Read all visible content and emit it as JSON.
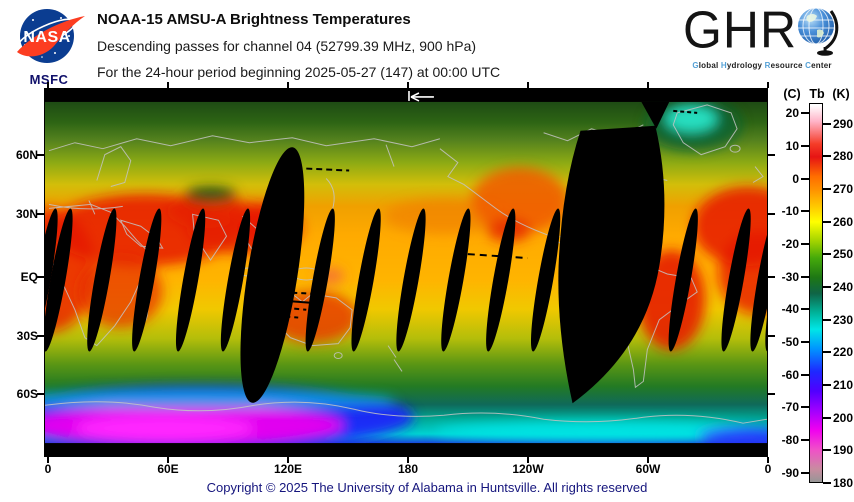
{
  "header": {
    "line1": "NOAA-15 AMSU-A Brightness Temperatures",
    "line2": "Descending passes for channel 04 (52799.39 MHz, 900 hPa)",
    "line3": "For the 24-hour period beginning 2025-05-27 (147) at 00:00 UTC"
  },
  "nasa": {
    "wordmark": "NASA",
    "center_label": "MSFC"
  },
  "ghrc": {
    "letters": "GHR",
    "tagline_words": [
      "Global",
      "Hydrology",
      "Resource",
      "Center"
    ],
    "accent_color": "#55a1d6"
  },
  "map": {
    "lat_labels": [
      "60N",
      "30N",
      "EQ",
      "30S",
      "60S"
    ],
    "lon_labels": [
      "0",
      "60E",
      "120E",
      "180",
      "120W",
      "60W",
      "0"
    ]
  },
  "colorbar": {
    "left_unit": "(C)",
    "title": "Tb",
    "right_unit": "(K)"
  },
  "footer": {
    "copyright": "Copyright © 2025 The University of Alabama in Huntsville.  All rights reserved"
  },
  "chart_data": {
    "type": "heatmap",
    "title": "NOAA-15 AMSU-A Brightness Temperatures",
    "subtitle": "Descending passes for channel 04 (52799.39 MHz, 900 hPa)",
    "period": "24-hour period beginning 2025-05-27 (147) at 00:00 UTC",
    "projection": "global equirectangular, longitude 0 to 360E left-to-right",
    "x_tick_labels": [
      "0",
      "60E",
      "120E",
      "180",
      "120W",
      "60W",
      "0"
    ],
    "y_tick_labels": [
      "60N",
      "30N",
      "EQ",
      "30S",
      "60S"
    ],
    "colorbar": {
      "label": "Tb",
      "units": [
        "C",
        "K"
      ],
      "celsius_ticks": [
        20,
        10,
        0,
        -10,
        -20,
        -30,
        -40,
        -50,
        -60,
        -70,
        -80,
        -90
      ],
      "kelvin_ticks": [
        290,
        280,
        270,
        260,
        250,
        240,
        230,
        220,
        210,
        200,
        190,
        180
      ],
      "k_top": 296.3,
      "k_bottom": 180,
      "gradient_stops": [
        {
          "k": 296,
          "color": "#ffffff"
        },
        {
          "k": 291,
          "color": "#ffb4c8"
        },
        {
          "k": 284,
          "color": "#f53c28"
        },
        {
          "k": 280,
          "color": "#e61414"
        },
        {
          "k": 274,
          "color": "#ff6e00"
        },
        {
          "k": 270,
          "color": "#ff9100"
        },
        {
          "k": 264,
          "color": "#ffd200"
        },
        {
          "k": 260,
          "color": "#ffff00"
        },
        {
          "k": 254,
          "color": "#a0d200"
        },
        {
          "k": 249,
          "color": "#46aa0a"
        },
        {
          "k": 243,
          "color": "#1e7814"
        },
        {
          "k": 238,
          "color": "#0f6446"
        },
        {
          "k": 232,
          "color": "#00b49b"
        },
        {
          "k": 227,
          "color": "#00e6e6"
        },
        {
          "k": 221,
          "color": "#0096ff"
        },
        {
          "k": 214,
          "color": "#1e28ff"
        },
        {
          "k": 208,
          "color": "#5000ff"
        },
        {
          "k": 202,
          "color": "#a000ff"
        },
        {
          "k": 196,
          "color": "#f000f0"
        },
        {
          "k": 190,
          "color": "#f050c8"
        },
        {
          "k": 184,
          "color": "#c88ca0"
        },
        {
          "k": 180,
          "color": "#969696"
        }
      ]
    },
    "data_gaps": [
      {
        "lon_e": 4.5,
        "size": "narrow"
      },
      {
        "lon_e": 26.5,
        "size": "narrow"
      },
      {
        "lon_e": 49,
        "size": "narrow"
      },
      {
        "lon_e": 71,
        "size": "narrow"
      },
      {
        "lon_e": 93.5,
        "size": "narrow"
      },
      {
        "lon_e": 112,
        "size": "wide"
      },
      {
        "lon_e": 136,
        "size": "narrow"
      },
      {
        "lon_e": 159,
        "size": "narrow"
      },
      {
        "lon_e": 181.5,
        "size": "narrow"
      },
      {
        "lon_e": 204,
        "size": "narrow"
      },
      {
        "lon_e": 226.5,
        "size": "narrow"
      },
      {
        "lon_e": 249,
        "size": "narrow"
      },
      {
        "lon_e": 280,
        "size": "giant"
      },
      {
        "lon_e": 318,
        "size": "narrow"
      },
      {
        "lon_e": 344.5,
        "size": "narrow"
      },
      {
        "lon_e": 359,
        "size": "narrow"
      }
    ],
    "features": {
      "hot_regions": [
        "Sahara and Arabian Peninsula",
        "India",
        "southern Africa",
        "Australia",
        "southwestern North America / Mexico",
        "central South America (Brazil)",
        "subtropical ocean bands near 10-30 deg latitude"
      ],
      "cold_regions": [
        "Antarctic interior 180-200 K (magenta/blue)",
        "Greenland interior ~230 K (teal)",
        "high northern latitudes (dark green)"
      ],
      "gap_note": "Black lens-shaped tilted swaths are gaps between descending passes; the widest gap lies over South America near 80W, with another wide gap near 112E"
    }
  }
}
